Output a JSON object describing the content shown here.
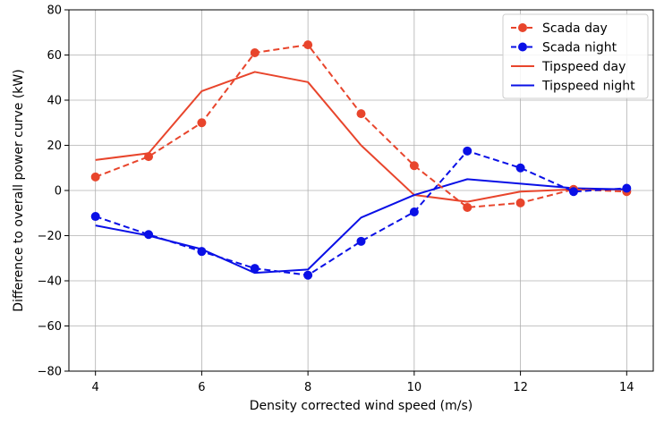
{
  "chart_data": {
    "type": "line",
    "title": "",
    "xlabel": "Density corrected wind speed (m/s)",
    "ylabel": "Difference to overall power curve (kW)",
    "xlim": [
      3.5,
      14.5
    ],
    "ylim": [
      -80,
      80
    ],
    "xticks": [
      4,
      6,
      8,
      10,
      12,
      14
    ],
    "yticks": [
      -80,
      -60,
      -40,
      -20,
      0,
      20,
      40,
      60,
      80
    ],
    "grid": true,
    "legend_position": "top-right",
    "x": [
      4,
      5,
      6,
      7,
      8,
      9,
      10,
      11,
      12,
      13,
      14
    ],
    "series": [
      {
        "name": "Scada day",
        "color": "#e8452c",
        "style": "dashed",
        "marker": "circle",
        "values": [
          6,
          15,
          30,
          61,
          64.5,
          34,
          11,
          -7.5,
          -5.5,
          0.5,
          -0.5
        ]
      },
      {
        "name": "Scada night",
        "color": "#0a10e6",
        "style": "dashed",
        "marker": "circle",
        "values": [
          -11.5,
          -19.5,
          -27,
          -34.5,
          -37.5,
          -22.5,
          -9.5,
          17.5,
          10,
          -0.5,
          1
        ]
      },
      {
        "name": "Tipspeed day",
        "color": "#e8452c",
        "style": "solid",
        "marker": "none",
        "values": [
          13.5,
          16.5,
          44,
          52.5,
          48,
          20,
          -2,
          -5,
          -0.5,
          0.5,
          0.5
        ]
      },
      {
        "name": "Tipspeed night",
        "color": "#0a10e6",
        "style": "solid",
        "marker": "none",
        "values": [
          -15.5,
          -20,
          -26,
          -36.5,
          -35,
          -12,
          -2,
          5,
          3,
          1,
          0.5
        ]
      }
    ]
  }
}
